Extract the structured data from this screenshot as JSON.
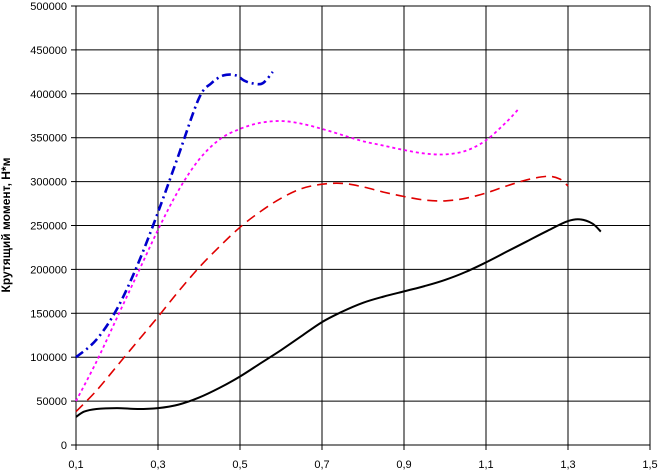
{
  "chart_data": {
    "type": "line",
    "ylabel": "Крутящий момент, Н*м",
    "xlim": [
      0.1,
      1.5
    ],
    "ylim": [
      0,
      500000
    ],
    "x_ticks": [
      0.1,
      0.3,
      0.5,
      0.7,
      0.9,
      1.1,
      1.3,
      1.5
    ],
    "x_tick_labels": [
      "0,1",
      "0,3",
      "0,5",
      "0,7",
      "0,9",
      "1,1",
      "1,3",
      "1,5"
    ],
    "y_ticks": [
      0,
      50000,
      100000,
      150000,
      200000,
      250000,
      300000,
      350000,
      400000,
      450000,
      500000
    ],
    "y_tick_labels": [
      "0",
      "50000",
      "100000",
      "150000",
      "200000",
      "250000",
      "300000",
      "350000",
      "400000",
      "450000",
      "500000"
    ],
    "grid": true,
    "series": [
      {
        "color": "#000000",
        "dash": "solid",
        "x": [
          0.1,
          0.12,
          0.15,
          0.2,
          0.25,
          0.3,
          0.35,
          0.4,
          0.45,
          0.5,
          0.55,
          0.6,
          0.65,
          0.7,
          0.75,
          0.8,
          0.85,
          0.9,
          0.95,
          1.0,
          1.05,
          1.1,
          1.15,
          1.2,
          1.25,
          1.3,
          1.33,
          1.36,
          1.38
        ],
        "y": [
          32000,
          38000,
          41000,
          42000,
          41000,
          42000,
          46000,
          54000,
          65000,
          78000,
          93000,
          108000,
          124000,
          140000,
          152000,
          162000,
          169000,
          175000,
          181000,
          188000,
          197000,
          208000,
          220000,
          232000,
          244000,
          255000,
          257000,
          252000,
          243000
        ]
      },
      {
        "color": "#e00000",
        "dash": "long-dash",
        "x": [
          0.1,
          0.15,
          0.2,
          0.25,
          0.3,
          0.35,
          0.4,
          0.45,
          0.5,
          0.55,
          0.6,
          0.65,
          0.7,
          0.75,
          0.8,
          0.85,
          0.9,
          0.95,
          1.0,
          1.05,
          1.1,
          1.15,
          1.2,
          1.25,
          1.28,
          1.3
        ],
        "y": [
          38000,
          62000,
          90000,
          118000,
          146000,
          175000,
          202000,
          226000,
          248000,
          266000,
          281000,
          292000,
          297000,
          298000,
          294000,
          288000,
          283000,
          279000,
          278000,
          281000,
          287000,
          295000,
          302000,
          306000,
          303000,
          295000
        ]
      },
      {
        "color": "#ff00ff",
        "dash": "dotted",
        "x": [
          0.1,
          0.15,
          0.2,
          0.25,
          0.3,
          0.35,
          0.4,
          0.45,
          0.5,
          0.55,
          0.6,
          0.65,
          0.7,
          0.75,
          0.8,
          0.85,
          0.9,
          0.95,
          1.0,
          1.05,
          1.1,
          1.15,
          1.18
        ],
        "y": [
          50000,
          95000,
          145000,
          195000,
          245000,
          290000,
          325000,
          348000,
          360000,
          367000,
          369000,
          366000,
          360000,
          353000,
          346000,
          341000,
          336000,
          332000,
          331000,
          335000,
          347000,
          368000,
          383000
        ]
      },
      {
        "color": "#0000cc",
        "dash": "dash-dot",
        "x": [
          0.1,
          0.15,
          0.2,
          0.25,
          0.3,
          0.35,
          0.4,
          0.43,
          0.46,
          0.49,
          0.51,
          0.53,
          0.555,
          0.58
        ],
        "y": [
          100000,
          120000,
          155000,
          205000,
          265000,
          330000,
          395000,
          412000,
          421000,
          421000,
          415000,
          412000,
          412000,
          425000
        ]
      }
    ]
  }
}
